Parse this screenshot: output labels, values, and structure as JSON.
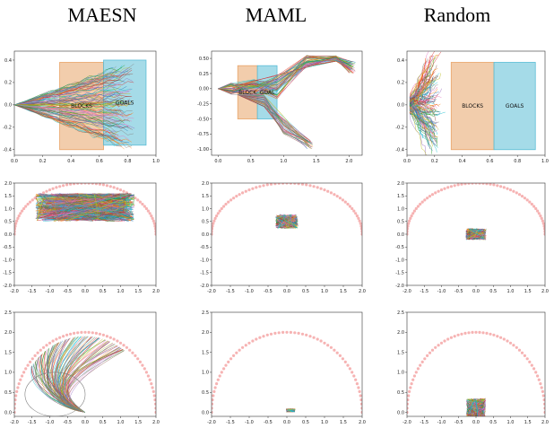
{
  "column_titles": [
    "MAESN",
    "MAML",
    "Random"
  ],
  "colors": {
    "blocks": "#e8a468",
    "goals": "#5bbdd6",
    "goal_arc": "#f4a0a0",
    "axes": "#333333",
    "palette": [
      "#1f77b4",
      "#ff7f0e",
      "#2ca02c",
      "#d62728",
      "#9467bd",
      "#8c564b",
      "#e377c2",
      "#7f7f7f",
      "#bcbd22",
      "#17becf"
    ]
  },
  "chart_data": [
    {
      "type": "line",
      "panel": "MAESN-pushing",
      "title": "MAESN",
      "xlim": [
        0,
        1.0
      ],
      "ylim": [
        -0.45,
        0.48
      ],
      "xticks": [
        "0.0",
        "0.2",
        "0.4",
        "0.6",
        "0.8",
        "1.0"
      ],
      "yticks": [
        "-0.4",
        "-0.2",
        "0.0",
        "0.2",
        "0.4"
      ],
      "regions": [
        {
          "name": "BLOCKS",
          "x": [
            0.32,
            0.63
          ],
          "y": [
            -0.4,
            0.38
          ]
        },
        {
          "name": "GOALS",
          "x": [
            0.63,
            0.93
          ],
          "y": [
            -0.36,
            0.4
          ]
        }
      ]
    },
    {
      "type": "line",
      "panel": "MAML-pushing",
      "title": "MAML",
      "xlim": [
        -0.1,
        2.2
      ],
      "ylim": [
        -1.1,
        0.62
      ],
      "xticks": [
        "0.0",
        "0.5",
        "1.0",
        "1.5",
        "2.0"
      ],
      "yticks": [
        "-1.00",
        "-0.75",
        "-0.50",
        "-0.25",
        "0.00",
        "0.25",
        "0.50"
      ],
      "regions": [
        {
          "name": "BLOCK",
          "x": [
            0.3,
            0.6
          ],
          "y": [
            -0.5,
            0.38
          ]
        },
        {
          "name": "GOAL",
          "x": [
            0.6,
            0.9
          ],
          "y": [
            -0.5,
            0.38
          ]
        }
      ]
    },
    {
      "type": "line",
      "panel": "Random-pushing",
      "title": "Random",
      "xlim": [
        0,
        1.0
      ],
      "ylim": [
        -0.45,
        0.48
      ],
      "xticks": [
        "0.0",
        "0.2",
        "0.4",
        "0.6",
        "0.8",
        "1.0"
      ],
      "yticks": [
        "-0.4",
        "-0.2",
        "0.0",
        "0.2",
        "0.4"
      ],
      "regions": [
        {
          "name": "BLOCKS",
          "x": [
            0.32,
            0.63
          ],
          "y": [
            -0.4,
            0.38
          ]
        },
        {
          "name": "GOALS",
          "x": [
            0.63,
            0.93
          ],
          "y": [
            -0.4,
            0.38
          ]
        }
      ]
    },
    {
      "type": "line",
      "panel": "MAESN-wheeled",
      "xlim": [
        -2,
        2
      ],
      "ylim": [
        -2,
        2
      ],
      "xticks": [
        "-2.0",
        "-1.5",
        "-1.0",
        "-0.5",
        "0.0",
        "0.5",
        "1.0",
        "1.5",
        "2.0"
      ],
      "yticks": [
        "-2.0",
        "-1.5",
        "-1.0",
        "-0.5",
        "0.0",
        "0.5",
        "1.0",
        "1.5",
        "2.0"
      ],
      "goal_arc_radius": 2.0,
      "cluster": {
        "cx": 0,
        "cy": 1.05,
        "rx": 1.4,
        "ry": 0.55
      }
    },
    {
      "type": "line",
      "panel": "MAML-wheeled",
      "xlim": [
        -2,
        2
      ],
      "ylim": [
        -2,
        2
      ],
      "xticks": [
        "-2.0",
        "-1.5",
        "-1.0",
        "-0.5",
        "0.0",
        "0.5",
        "1.0",
        "1.5",
        "2.0"
      ],
      "yticks": [
        "-2.0",
        "-1.5",
        "-1.0",
        "-0.5",
        "0.0",
        "0.5",
        "1.0",
        "1.5",
        "2.0"
      ],
      "goal_arc_radius": 2.0,
      "cluster": {
        "cx": 0,
        "cy": 0.5,
        "rx": 0.3,
        "ry": 0.28
      }
    },
    {
      "type": "line",
      "panel": "Random-wheeled",
      "xlim": [
        -2,
        2
      ],
      "ylim": [
        -2,
        2
      ],
      "xticks": [
        "-2.0",
        "-1.5",
        "-1.0",
        "-0.5",
        "0.0",
        "0.5",
        "1.0",
        "1.5",
        "2.0"
      ],
      "yticks": [
        "-2.0",
        "-1.5",
        "-1.0",
        "-0.5",
        "0.0",
        "0.5",
        "1.0",
        "1.5",
        "2.0"
      ],
      "goal_arc_radius": 2.0,
      "cluster": {
        "cx": 0,
        "cy": 0,
        "rx": 0.3,
        "ry": 0.22
      }
    },
    {
      "type": "line",
      "panel": "MAESN-legged",
      "xlim": [
        -2,
        2
      ],
      "ylim": [
        -0.1,
        2.5
      ],
      "xticks": [
        "-2.0",
        "-1.5",
        "-1.0",
        "-0.5",
        "0.0",
        "0.5",
        "1.0",
        "1.5",
        "2.0"
      ],
      "yticks": [
        "0.0",
        "0.5",
        "1.0",
        "1.5",
        "2.0",
        "2.5"
      ],
      "goal_arc_radius": 2.0
    },
    {
      "type": "line",
      "panel": "MAML-legged",
      "xlim": [
        -2,
        2
      ],
      "ylim": [
        -0.1,
        2.5
      ],
      "xticks": [
        "-2.0",
        "-1.5",
        "-1.0",
        "-0.5",
        "0.0",
        "0.5",
        "1.0",
        "1.5",
        "2.0"
      ],
      "yticks": [
        "0.0",
        "0.5",
        "1.0",
        "1.5",
        "2.0",
        "2.5"
      ],
      "goal_arc_radius": 2.0,
      "cluster": {
        "cx": 0.1,
        "cy": 0.05,
        "rx": 0.12,
        "ry": 0.04
      }
    },
    {
      "type": "line",
      "panel": "Random-legged",
      "xlim": [
        -2,
        2
      ],
      "ylim": [
        -0.1,
        2.5
      ],
      "xticks": [
        "-2.0",
        "-1.5",
        "-1.0",
        "-0.5",
        "0.0",
        "0.5",
        "1.0",
        "1.5",
        "2.0"
      ],
      "yticks": [
        "0.0",
        "0.5",
        "1.0",
        "1.5",
        "2.0",
        "2.5"
      ],
      "goal_arc_radius": 2.0,
      "cluster": {
        "cx": 0,
        "cy": 0.1,
        "rx": 0.28,
        "ry": 0.25
      }
    }
  ]
}
